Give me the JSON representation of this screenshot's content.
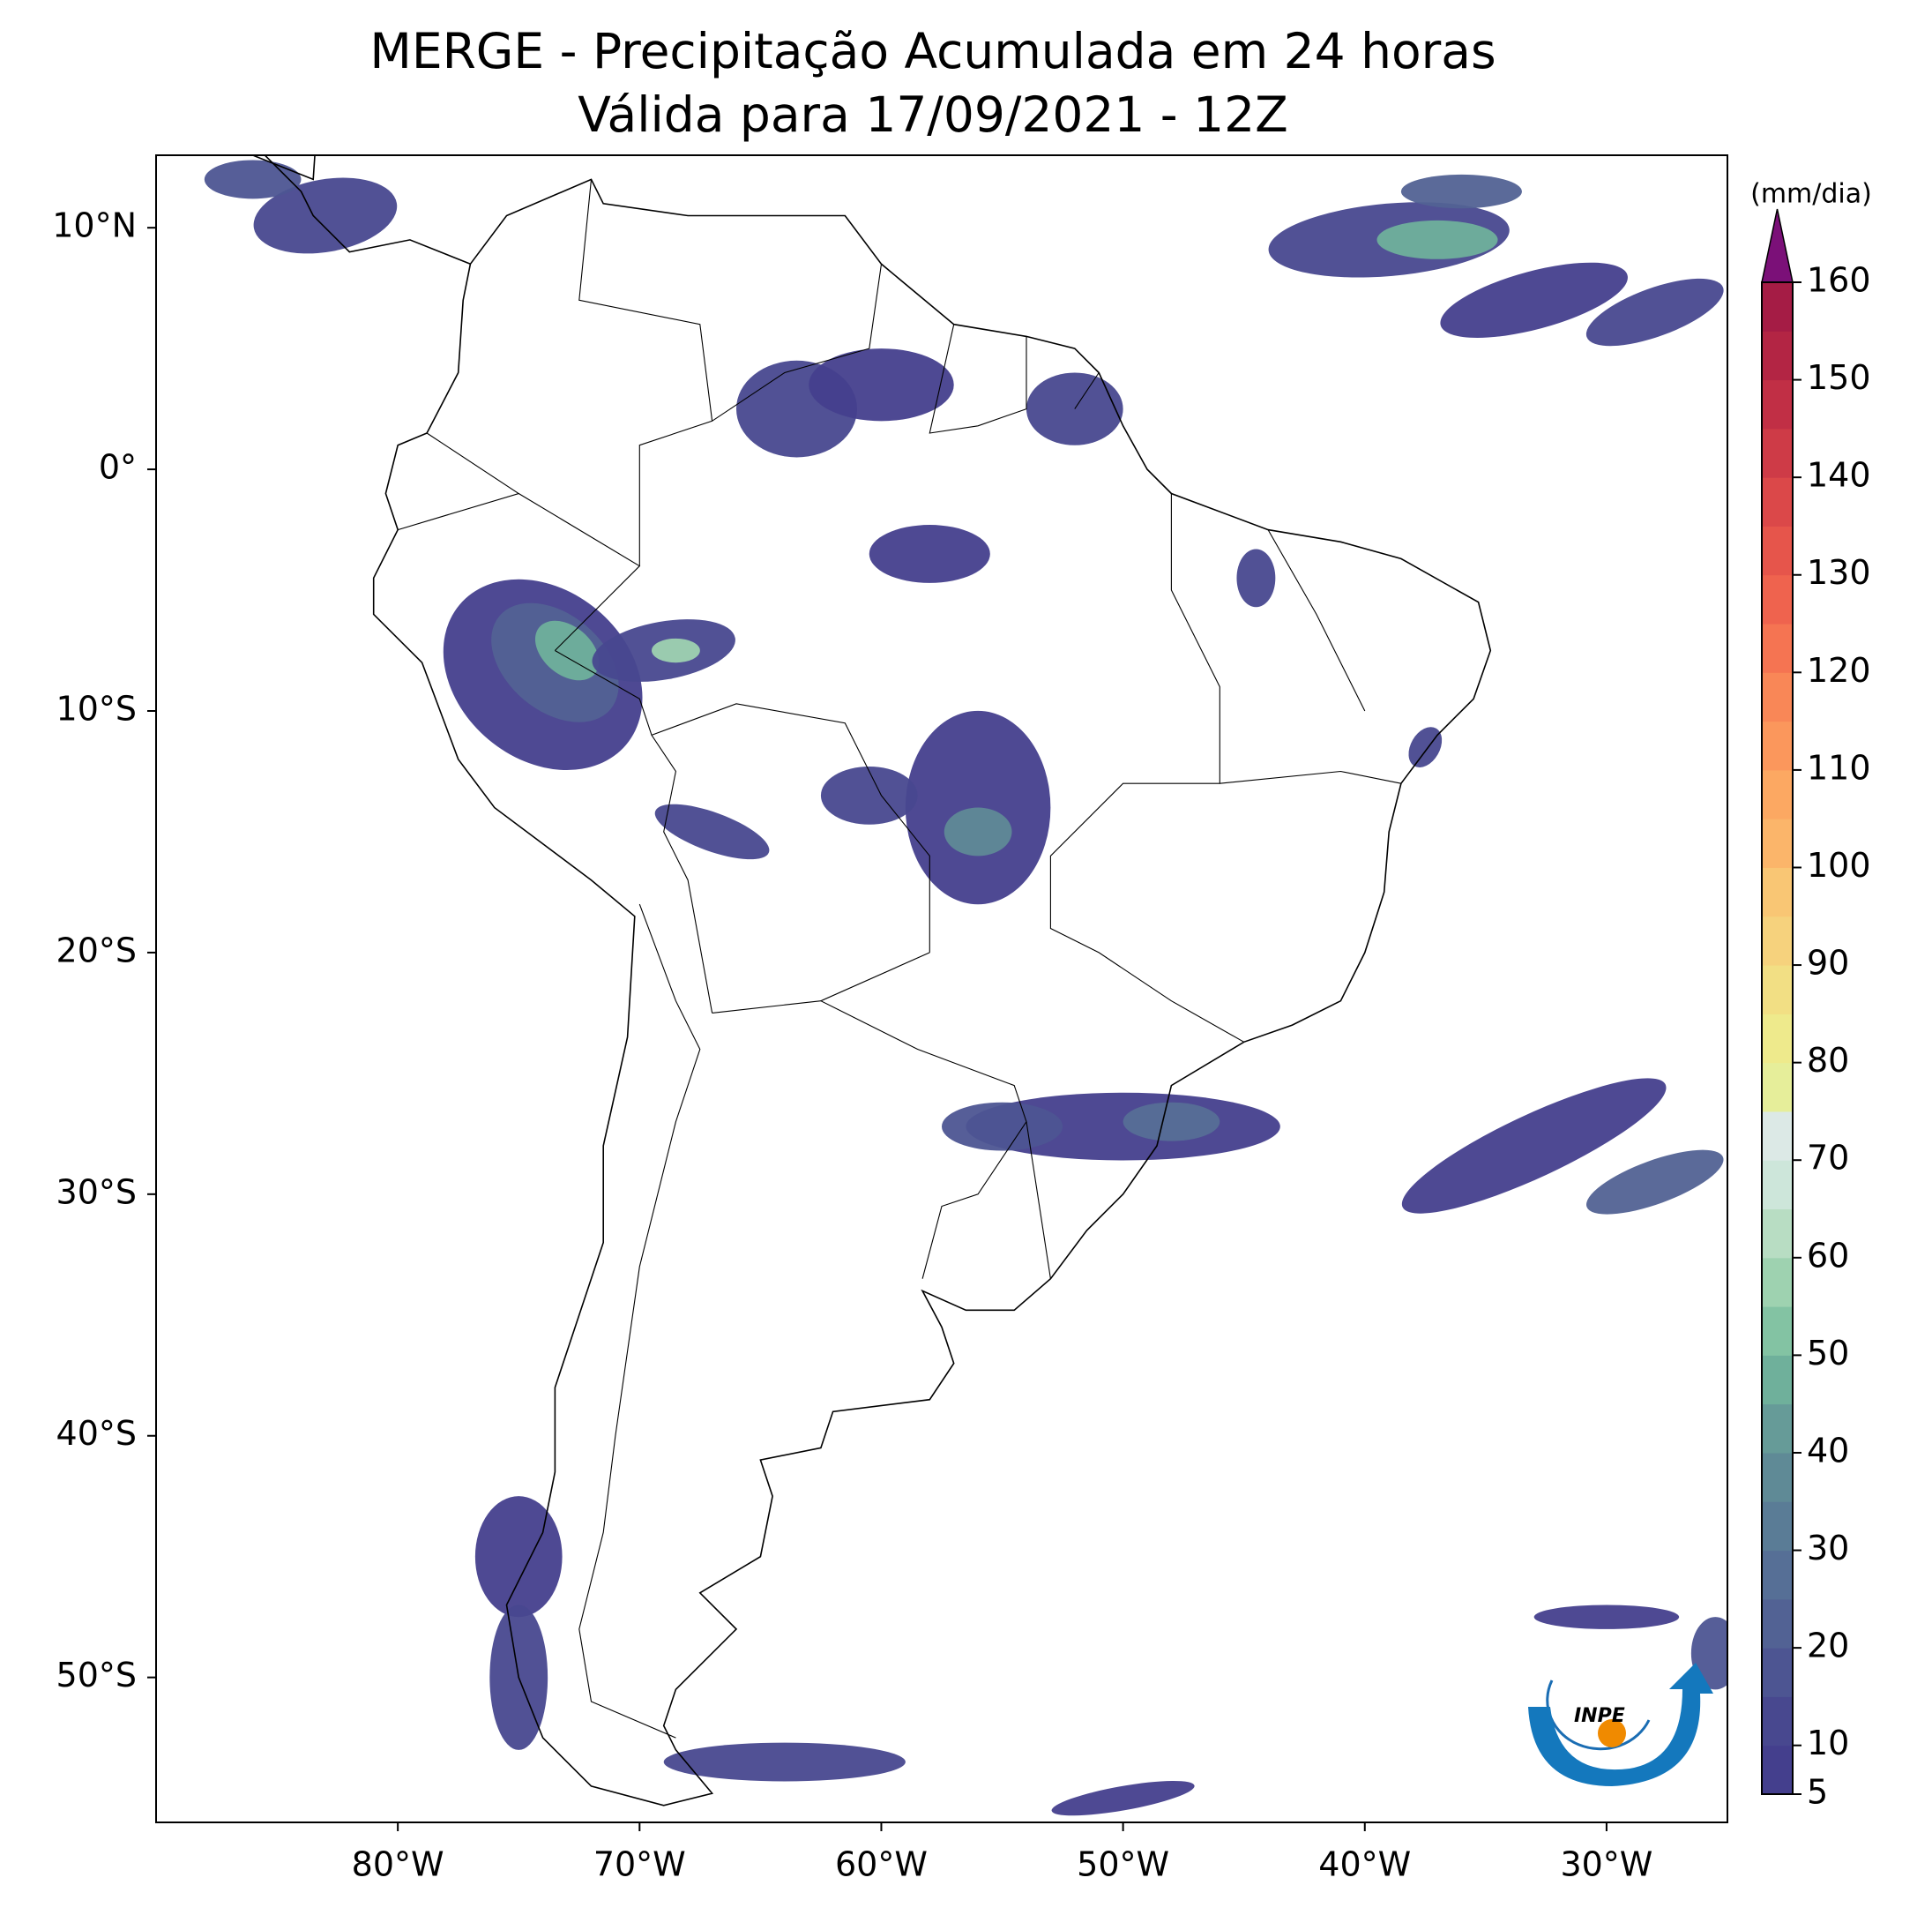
{
  "map": {
    "title": "MERGE - Precipitação Acumulada em 24 horas",
    "subtitle": "Válida para 17/09/2021 - 12Z",
    "lonlim": [
      -90,
      -25
    ],
    "latlim": [
      -56,
      13
    ],
    "xticks": [
      {
        "value": -80,
        "label": "80°W"
      },
      {
        "value": -70,
        "label": "70°W"
      },
      {
        "value": -60,
        "label": "60°W"
      },
      {
        "value": -50,
        "label": "50°W"
      },
      {
        "value": -40,
        "label": "40°W"
      },
      {
        "value": -30,
        "label": "30°W"
      }
    ],
    "yticks": [
      {
        "value": 10,
        "label": "10°N"
      },
      {
        "value": 0,
        "label": "0°"
      },
      {
        "value": -10,
        "label": "10°S"
      },
      {
        "value": -20,
        "label": "20°S"
      },
      {
        "value": -30,
        "label": "30°S"
      },
      {
        "value": -40,
        "label": "40°S"
      },
      {
        "value": -50,
        "label": "50°S"
      }
    ],
    "colorbar": {
      "label": "(mm/dia)",
      "lim": [
        5,
        160
      ],
      "ticks": [
        5,
        10,
        20,
        30,
        40,
        50,
        60,
        70,
        80,
        90,
        100,
        110,
        120,
        130,
        140,
        150,
        160
      ],
      "colors": [
        "#443f8d",
        "#48488f",
        "#4d5592",
        "#526294",
        "#566f96",
        "#5a7c96",
        "#5f8a96",
        "#669b98",
        "#6fb09b",
        "#83c3a3",
        "#9ed2b0",
        "#b8ddc3",
        "#cde6da",
        "#dce9e6",
        "#e6ee9a",
        "#eeea8c",
        "#f2df84",
        "#f6d27d",
        "#f9c674",
        "#fbb56a",
        "#fca862",
        "#fb975c",
        "#f98757",
        "#f57452",
        "#ef634e",
        "#e6554b",
        "#db4849",
        "#ce3b47",
        "#c12f45",
        "#b32544",
        "#a51c45"
      ],
      "extend_color": "#7b1078"
    },
    "logo": "INPE"
  }
}
